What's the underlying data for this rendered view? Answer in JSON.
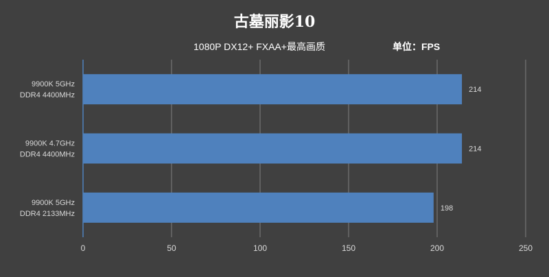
{
  "chart_data": {
    "type": "bar",
    "orientation": "horizontal",
    "title": "古墓丽影10",
    "subtitle": "1080P DX12+ FXAA+最高画质",
    "unit_label": "单位：FPS",
    "categories": [
      [
        "9900K 5GHz",
        "DDR4 4400MHz"
      ],
      [
        "9900K 4.7GHz",
        "DDR4 4400MHz"
      ],
      [
        "9900K 5GHz",
        "DDR4 2133MHz"
      ]
    ],
    "values": [
      214,
      214,
      198
    ],
    "xlim": [
      0,
      250
    ],
    "xticks": [
      "0",
      "50",
      "100",
      "150",
      "200",
      "250"
    ],
    "grid": true,
    "legend": "none",
    "colors": {
      "background": "#404040",
      "bar": "#4f81bd",
      "text": "#ffffff",
      "label": "#d9d9d9",
      "grid": "#7f7f7f",
      "axis": "#4f81bd"
    }
  }
}
